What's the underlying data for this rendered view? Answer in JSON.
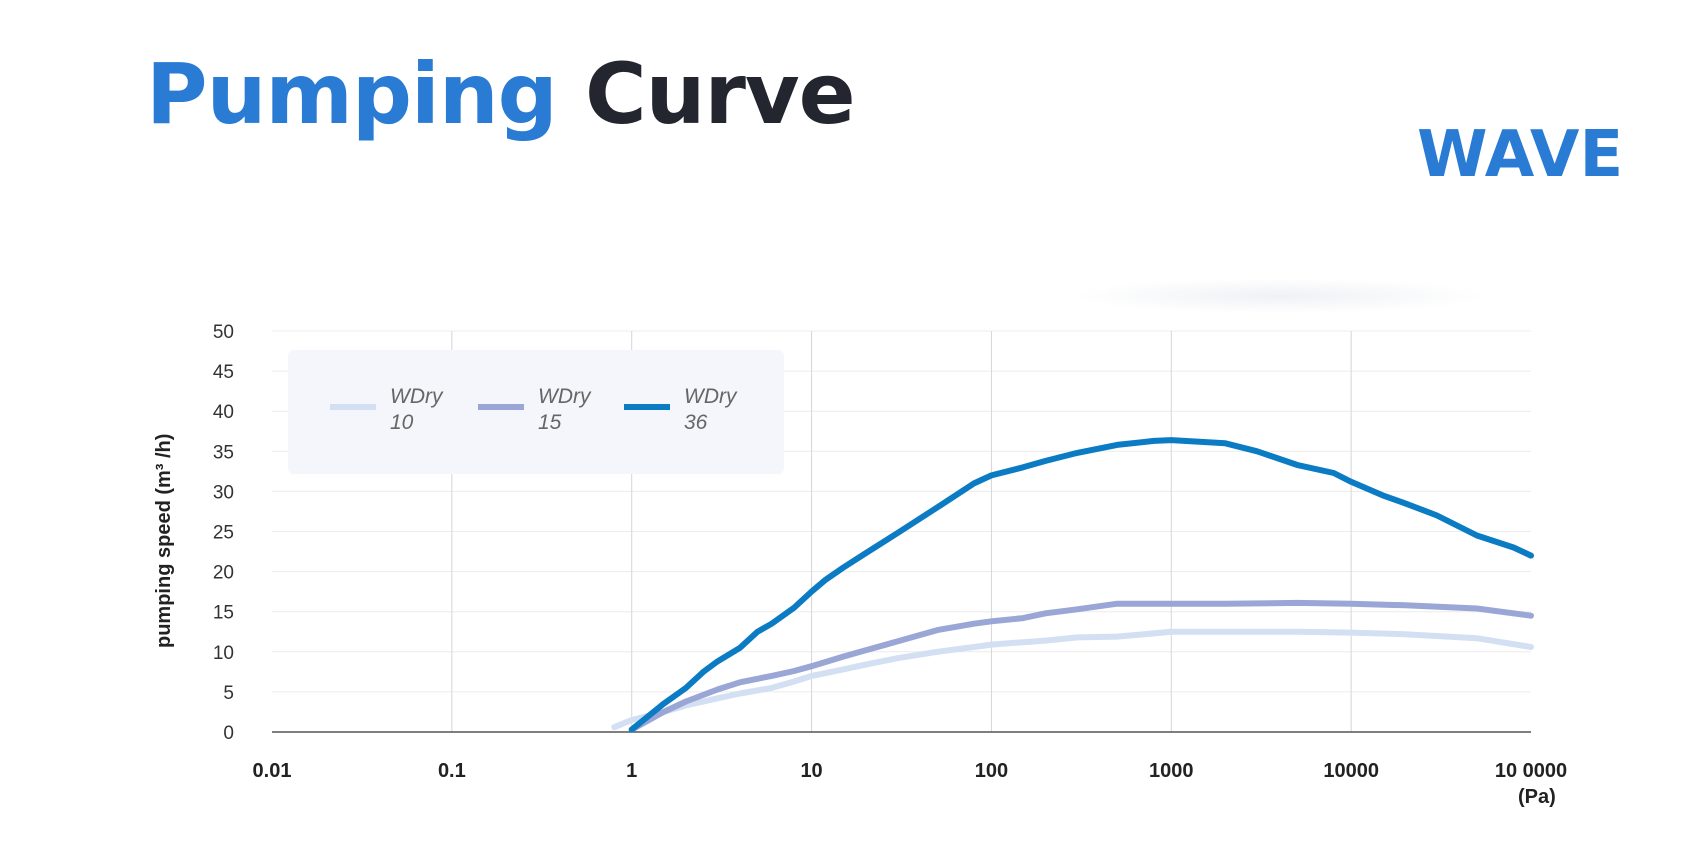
{
  "header": {
    "title_part1": "Pumping",
    "title_part2": "Curve",
    "brand": "WAVE"
  },
  "colors": {
    "accent": "#2a7bd4",
    "title_dark": "#23262e"
  },
  "chart_data": {
    "type": "line",
    "ylabel": "pumping speed (m³ /h)",
    "unit_label": "(Pa)",
    "x_scale": "log",
    "xlim": [
      0.01,
      100000
    ],
    "ylim": [
      0,
      50
    ],
    "y_ticks": [
      0,
      5,
      10,
      15,
      20,
      25,
      30,
      35,
      40,
      45,
      50
    ],
    "x_ticks": [
      0.01,
      0.1,
      1,
      10,
      100,
      1000,
      10000,
      100000
    ],
    "x_tick_labels": [
      "0.01",
      "0.1",
      "1",
      "10",
      "100",
      "1000",
      "10000",
      "10 0000"
    ],
    "grid": true,
    "legend_position": "top-left",
    "series": [
      {
        "name_line1": "WDry",
        "name_line2": "10",
        "color": "#d3dff2",
        "x": [
          0.8,
          1,
          1.5,
          2,
          3,
          4,
          6,
          8,
          10,
          15,
          20,
          30,
          50,
          80,
          100,
          150,
          200,
          300,
          500,
          1000,
          2000,
          5000,
          10000,
          20000,
          50000,
          100000
        ],
        "y": [
          0.6,
          1.5,
          2.5,
          3.3,
          4.2,
          4.8,
          5.5,
          6.3,
          7.0,
          7.8,
          8.4,
          9.2,
          10.0,
          10.6,
          10.9,
          11.2,
          11.4,
          11.8,
          11.9,
          12.5,
          12.5,
          12.5,
          12.4,
          12.2,
          11.7,
          10.6
        ]
      },
      {
        "name_line1": "WDry",
        "name_line2": "15",
        "color": "#9aa6d6",
        "x": [
          1,
          1.5,
          2,
          3,
          4,
          6,
          8,
          10,
          15,
          20,
          30,
          50,
          80,
          100,
          150,
          200,
          300,
          500,
          1000,
          2000,
          5000,
          10000,
          20000,
          50000,
          100000
        ],
        "y": [
          0.3,
          2.5,
          3.8,
          5.3,
          6.2,
          7.0,
          7.6,
          8.2,
          9.4,
          10.2,
          11.3,
          12.7,
          13.5,
          13.8,
          14.2,
          14.8,
          15.3,
          16.0,
          16.0,
          16.0,
          16.1,
          16.0,
          15.8,
          15.4,
          14.5
        ]
      },
      {
        "name_line1": "WDry",
        "name_line2": "36",
        "color": "#0b7bc4",
        "x": [
          1,
          1.5,
          2,
          2.5,
          3,
          4,
          5,
          6,
          8,
          10,
          12,
          15,
          20,
          30,
          50,
          80,
          100,
          150,
          200,
          300,
          500,
          800,
          1000,
          2000,
          3000,
          5000,
          8000,
          10000,
          15000,
          20000,
          30000,
          50000,
          80000,
          100000
        ],
        "y": [
          0.3,
          3.5,
          5.5,
          7.5,
          8.8,
          10.5,
          12.5,
          13.5,
          15.5,
          17.5,
          19.0,
          20.5,
          22.3,
          24.8,
          28.0,
          31.0,
          32.0,
          33.0,
          33.8,
          34.8,
          35.8,
          36.3,
          36.4,
          36.0,
          35.0,
          33.3,
          32.3,
          31.2,
          29.5,
          28.5,
          27.0,
          24.5,
          23.0,
          22.0
        ]
      }
    ]
  }
}
